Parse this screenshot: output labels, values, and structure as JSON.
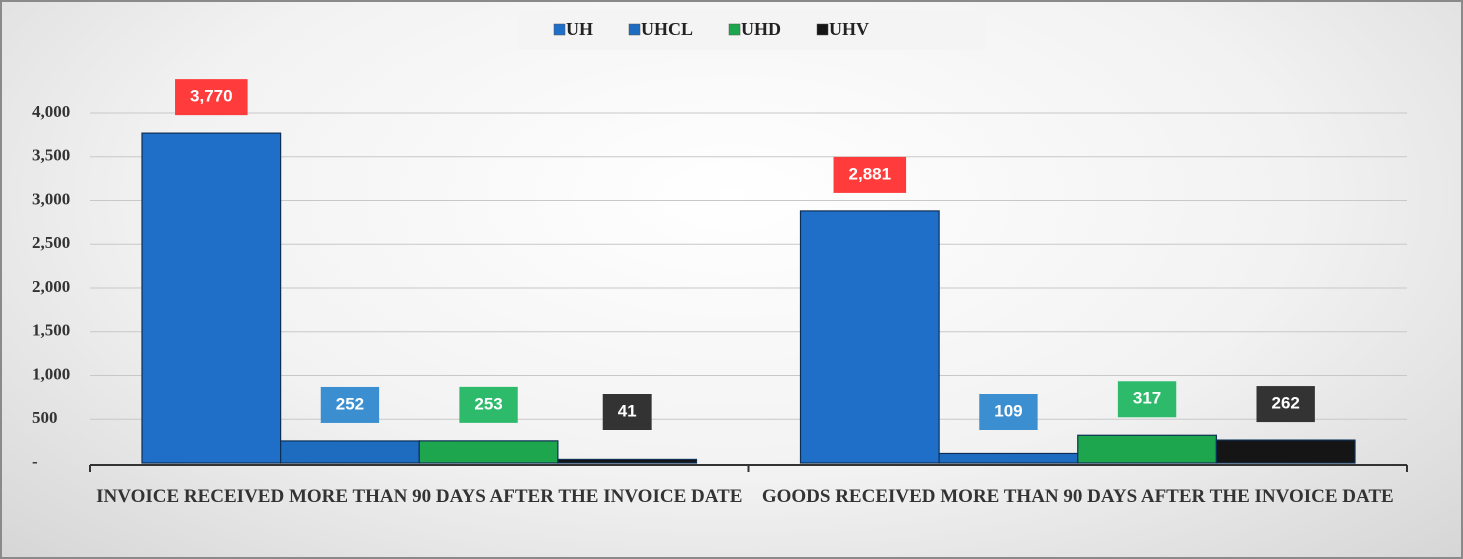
{
  "chart_data": {
    "type": "bar",
    "categories": [
      "INVOICE RECEIVED MORE THAN 90 DAYS AFTER THE INVOICE DATE",
      "GOODS RECEIVED MORE THAN 90 DAYS AFTER THE INVOICE DATE"
    ],
    "series": [
      {
        "name": "UH",
        "color": "#1f6fc9",
        "label_color": "#ff3b3b",
        "values": [
          3770,
          2881
        ],
        "value_labels": [
          "3,770",
          "2,881"
        ]
      },
      {
        "name": "UHCL",
        "color": "#1d6cc0",
        "label_color": "#3b8fd1",
        "values": [
          252,
          109
        ]
      },
      {
        "name": "UHD",
        "color": "#1ea64e",
        "label_color": "#2dbb6b",
        "values": [
          253,
          317
        ]
      },
      {
        "name": "UHV",
        "color": "#151515",
        "label_color": "#333333",
        "values": [
          41,
          262
        ]
      }
    ],
    "ylim": [
      0,
      4000
    ],
    "yticks": [
      {
        "value": 0,
        "label": "-"
      },
      500,
      {
        "value": 1000,
        "label": "1,000"
      },
      {
        "value": 1500,
        "label": "1,500"
      },
      {
        "value": 2000,
        "label": "2,000"
      },
      {
        "value": 2500,
        "label": "2,500"
      },
      {
        "value": 3000,
        "label": "3,000"
      },
      {
        "value": 3500,
        "label": "3,500"
      },
      {
        "value": 4000,
        "label": "4,000"
      }
    ],
    "grid": true,
    "legend": "top"
  }
}
